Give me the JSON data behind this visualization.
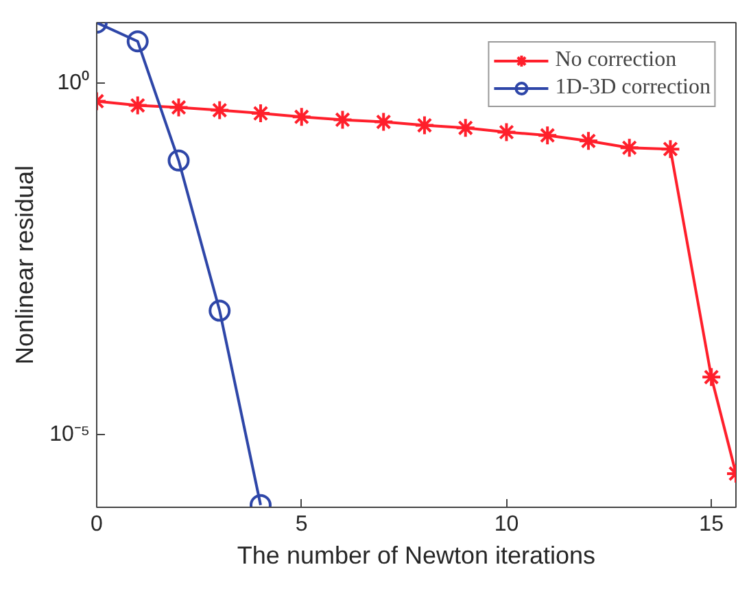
{
  "chart_data": {
    "type": "line",
    "xlabel": "The number of Newton iterations",
    "ylabel": "Nonlinear residual",
    "log": "y",
    "xlim": [
      0,
      15.6
    ],
    "ylim": [
      9.3e-07,
      7.2
    ],
    "xticks": [
      0,
      5,
      10,
      15
    ],
    "yticks": [
      {
        "value": 1,
        "label": "10⁰"
      },
      {
        "value": 1e-05,
        "label": "10⁻⁵"
      }
    ],
    "legend": "top right",
    "line_style": "solid",
    "series": [
      {
        "name": "No correction",
        "color": "#ff1f2b",
        "marker": "cross",
        "x": [
          0,
          1,
          2,
          3,
          4,
          5,
          6,
          7,
          8,
          9,
          10,
          11,
          12,
          13,
          14,
          15,
          15.6
        ],
        "values": [
          0.55,
          0.48,
          0.45,
          0.41,
          0.37,
          0.33,
          0.3,
          0.28,
          0.25,
          0.23,
          0.2,
          0.18,
          0.15,
          0.12,
          0.115,
          6.6e-05,
          2.8e-06
        ]
      },
      {
        "name": "1D-3D correction",
        "color": "#2e46a8",
        "marker": "circle",
        "x": [
          0,
          1,
          2,
          3,
          4
        ],
        "values": [
          7.2,
          3.9,
          0.079,
          0.00058,
          1e-06
        ]
      }
    ]
  }
}
